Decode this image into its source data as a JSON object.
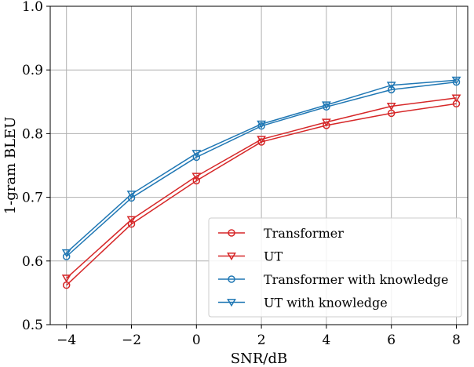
{
  "chart_data": {
    "type": "line",
    "title": "",
    "xlabel": "SNR/dB",
    "ylabel": "1-gram BLEU",
    "x": [
      -4,
      -2,
      0,
      2,
      4,
      6,
      8
    ],
    "xticks": [
      "−4",
      "−2",
      "0",
      "2",
      "4",
      "6",
      "8"
    ],
    "yticks": [
      "0.5",
      "0.6",
      "0.7",
      "0.8",
      "0.9",
      "1.0"
    ],
    "xlim": [
      -4.5,
      8.35
    ],
    "ylim": [
      0.5,
      1.0
    ],
    "grid": true,
    "legend_position": "lower-right",
    "series": [
      {
        "name": "Transformer",
        "color": "#d62728",
        "marker": "circle",
        "values": [
          0.562,
          0.658,
          0.726,
          0.787,
          0.813,
          0.832,
          0.847
        ]
      },
      {
        "name": "UT",
        "color": "#d62728",
        "marker": "triangle-down",
        "values": [
          0.573,
          0.665,
          0.733,
          0.791,
          0.818,
          0.843,
          0.856
        ]
      },
      {
        "name": "Transformer with knowledge",
        "color": "#1f77b4",
        "marker": "circle",
        "values": [
          0.607,
          0.699,
          0.763,
          0.812,
          0.842,
          0.869,
          0.881
        ]
      },
      {
        "name": "UT with knowledge",
        "color": "#1f77b4",
        "marker": "triangle-down",
        "values": [
          0.613,
          0.705,
          0.769,
          0.815,
          0.845,
          0.876,
          0.884
        ]
      }
    ]
  }
}
